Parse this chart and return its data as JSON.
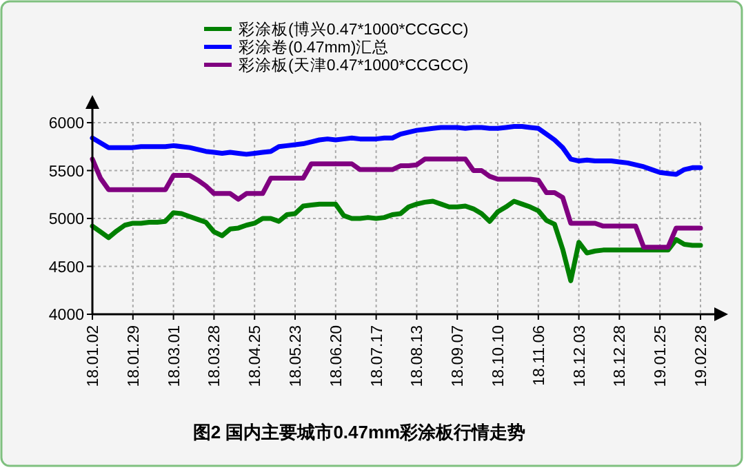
{
  "chart_data": {
    "type": "line",
    "title": "图2 国内主要城市0.47mm彩涂板行情走势",
    "categories": [
      "18.01.02",
      null,
      null,
      null,
      null,
      "18.01.29",
      null,
      null,
      null,
      null,
      "18.03.01",
      null,
      null,
      null,
      null,
      "18.03.28",
      null,
      null,
      null,
      null,
      "18.04.25",
      null,
      null,
      null,
      null,
      "18.05.23",
      null,
      null,
      null,
      null,
      "18.06.20",
      null,
      null,
      null,
      null,
      "18.07.17",
      null,
      null,
      null,
      null,
      "18.08.13",
      null,
      null,
      null,
      null,
      "18.09.07",
      null,
      null,
      null,
      null,
      "18.10.10",
      null,
      null,
      null,
      null,
      "18.11.06",
      null,
      null,
      null,
      null,
      "18.12.03",
      null,
      null,
      null,
      null,
      "18.12.28",
      null,
      null,
      null,
      null,
      "19.01.25",
      null,
      null,
      null,
      null,
      "19.02.28"
    ],
    "series": [
      {
        "name": "彩涂板(博兴0.47*1000*CCGCC)",
        "color": "#008000",
        "values": [
          4920,
          4860,
          4800,
          4870,
          4930,
          4950,
          4950,
          4960,
          4960,
          4970,
          5060,
          5050,
          5020,
          4990,
          4960,
          4860,
          4820,
          4890,
          4900,
          4930,
          4950,
          5000,
          5000,
          4970,
          5040,
          5050,
          5130,
          5140,
          5150,
          5150,
          5150,
          5030,
          5000,
          5000,
          5010,
          5000,
          5010,
          5040,
          5050,
          5120,
          5150,
          5170,
          5180,
          5150,
          5120,
          5120,
          5130,
          5100,
          5050,
          4970,
          5070,
          5120,
          5180,
          5150,
          5120,
          5080,
          4980,
          4940,
          4680,
          4350,
          4750,
          4640,
          4660,
          4670,
          4670,
          4670,
          4670,
          4670,
          4670,
          4670,
          4670,
          4670,
          4780,
          4730,
          4720,
          4720
        ]
      },
      {
        "name": "彩涂卷(0.47mm)汇总",
        "color": "#0000ff",
        "values": [
          5840,
          5790,
          5740,
          5740,
          5740,
          5740,
          5750,
          5750,
          5750,
          5750,
          5760,
          5750,
          5740,
          5720,
          5700,
          5690,
          5680,
          5690,
          5680,
          5670,
          5680,
          5690,
          5700,
          5750,
          5760,
          5770,
          5780,
          5800,
          5820,
          5830,
          5820,
          5830,
          5840,
          5830,
          5830,
          5830,
          5840,
          5840,
          5880,
          5900,
          5920,
          5930,
          5940,
          5950,
          5950,
          5950,
          5940,
          5950,
          5950,
          5940,
          5940,
          5950,
          5960,
          5960,
          5950,
          5940,
          5880,
          5820,
          5740,
          5620,
          5600,
          5610,
          5600,
          5600,
          5600,
          5590,
          5580,
          5560,
          5540,
          5510,
          5480,
          5470,
          5460,
          5510,
          5530,
          5530
        ]
      },
      {
        "name": "彩涂板(天津0.47*1000*CCGCC)",
        "color": "#800080",
        "values": [
          5620,
          5420,
          5300,
          5300,
          5300,
          5300,
          5300,
          5300,
          5300,
          5300,
          5450,
          5450,
          5450,
          5400,
          5340,
          5260,
          5260,
          5260,
          5200,
          5260,
          5260,
          5260,
          5420,
          5420,
          5420,
          5420,
          5420,
          5570,
          5570,
          5570,
          5570,
          5570,
          5570,
          5510,
          5510,
          5510,
          5510,
          5510,
          5550,
          5550,
          5560,
          5620,
          5620,
          5620,
          5620,
          5620,
          5620,
          5500,
          5500,
          5440,
          5410,
          5410,
          5410,
          5410,
          5410,
          5400,
          5270,
          5270,
          5220,
          4950,
          4950,
          4950,
          4950,
          4920,
          4920,
          4920,
          4920,
          4920,
          4700,
          4700,
          4700,
          4700,
          4900,
          4900,
          4900,
          4900
        ]
      }
    ],
    "ylim": [
      4000,
      6000
    ],
    "yticks": [
      4000,
      4500,
      5000,
      5500,
      6000
    ],
    "grid": true,
    "legend": "top"
  }
}
